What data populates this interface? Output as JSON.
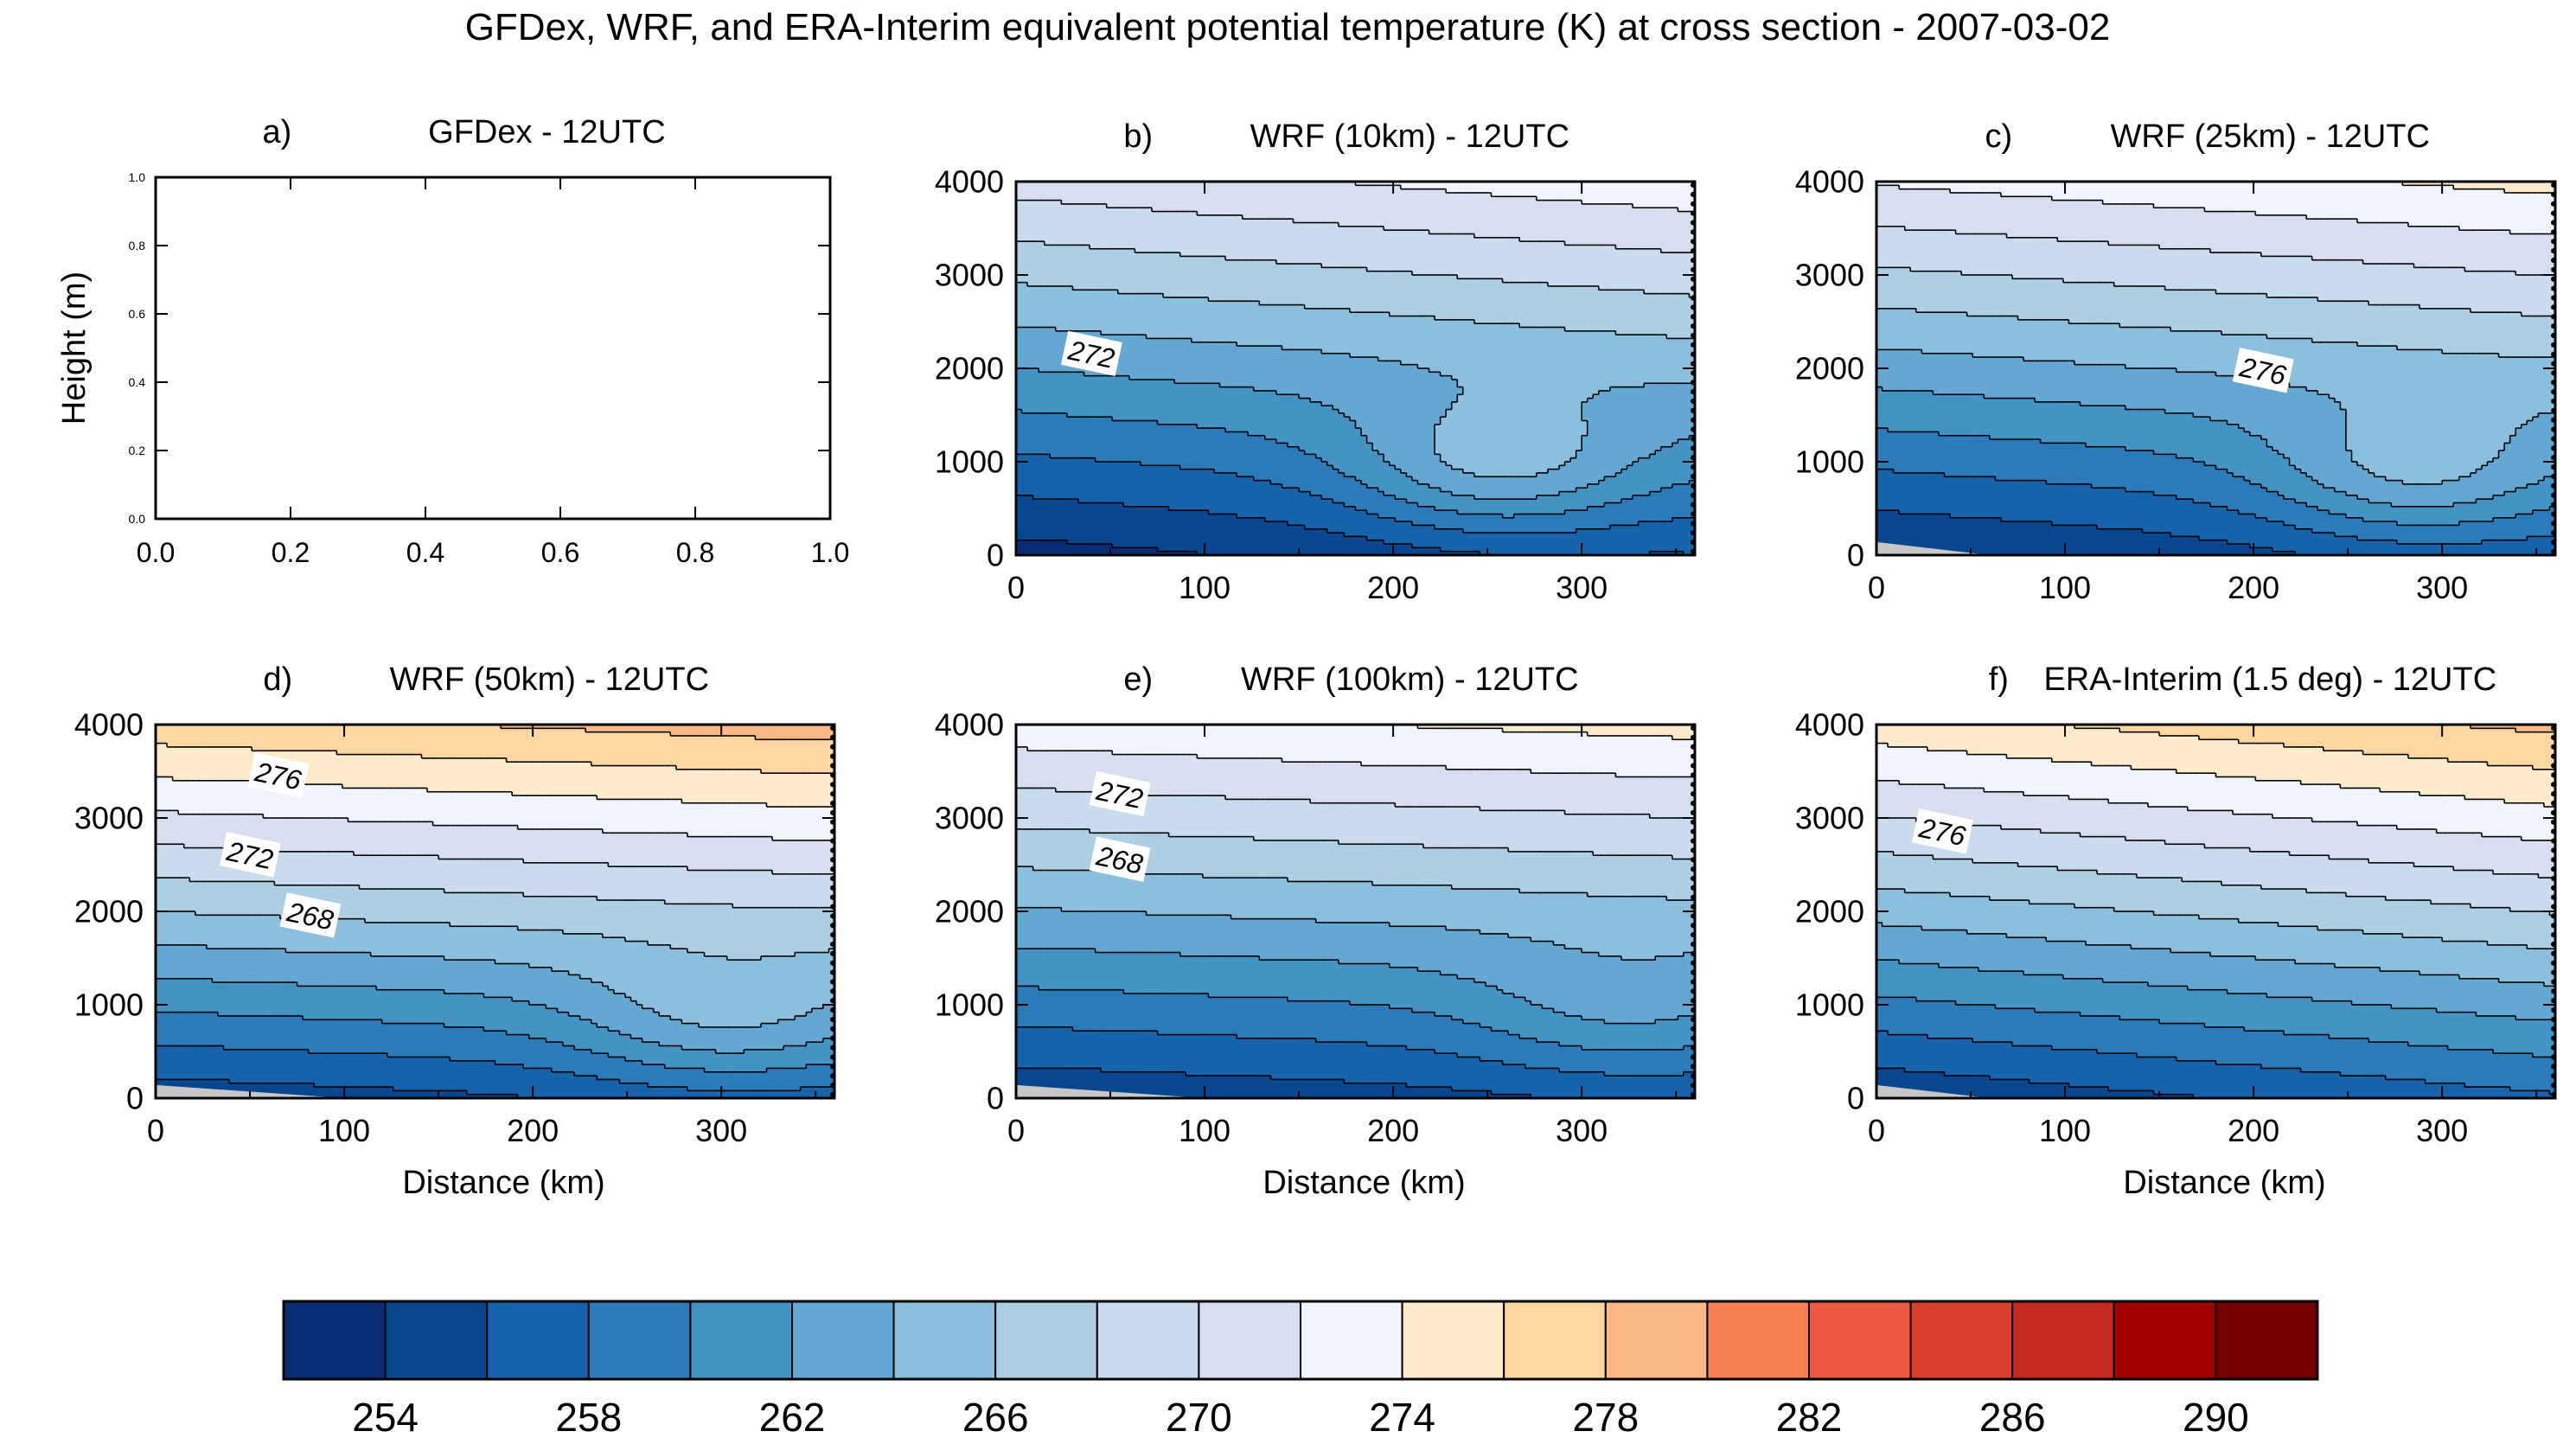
{
  "figure": {
    "title": "GFDex, WRF, and ERA-Interim equivalent potential temperature (K) at cross section - 2007-03-02"
  },
  "colors": {
    "levels": [
      "#0a2c74",
      "#08468f",
      "#1662ab",
      "#2b7bba",
      "#4493c5",
      "#62a8d2",
      "#8cbfdd",
      "#adcfe4",
      "#c8dcee",
      "#d6deef",
      "#f0f4fc",
      "#feebcc",
      "#fdd7a2",
      "#fcb985",
      "#f67e52",
      "#ea5940",
      "#d8402d",
      "#c42a1e",
      "#a40000",
      "#740000"
    ],
    "ground": "#c7c7c7",
    "contour": "#000000"
  },
  "chart_data": [
    {
      "id": "a",
      "type": "empty",
      "panel_label": "a)",
      "title": "GFDex - 12UTC",
      "ylabel": "Height (m)",
      "xlabel": "",
      "xlim": [
        0,
        1
      ],
      "ylim": [
        0,
        1
      ],
      "xticks": [
        "0.0",
        "0.2",
        "0.4",
        "0.6",
        "0.8",
        "1.0"
      ],
      "yticks": [
        "0.0",
        "0.2",
        "0.4",
        "0.6",
        "0.8",
        "1.0"
      ]
    },
    {
      "id": "b",
      "type": "contour",
      "panel_label": "b)",
      "title": "WRF (10km) - 12UTC",
      "xlabel": "",
      "xlim": [
        0,
        360
      ],
      "ylim": [
        0,
        4000
      ],
      "xticks": [
        "0",
        "100",
        "200",
        "300"
      ],
      "yticks": [
        "0",
        "1000",
        "2000",
        "3000",
        "4000"
      ],
      "theta_min": 253.2,
      "slope": 4.4,
      "gradient": 0.72,
      "bulge": 5.5,
      "bulge_x": 255,
      "bulge_z": 950,
      "surface_ground": [
        0,
        0
      ],
      "contour_labels": [
        {
          "text": "272",
          "x": 40,
          "z": 2150
        }
      ]
    },
    {
      "id": "c",
      "type": "contour",
      "panel_label": "c)",
      "title": "WRF (25km) - 12UTC",
      "xlabel": "",
      "xlim": [
        0,
        360
      ],
      "ylim": [
        0,
        4000
      ],
      "xticks": [
        "0",
        "100",
        "200",
        "300"
      ],
      "yticks": [
        "0",
        "1000",
        "2000",
        "3000",
        "4000"
      ],
      "theta_min": 253.8,
      "slope": 4.6,
      "gradient": 0.68,
      "bulge": 4.8,
      "bulge_x": 285,
      "bulge_z": 850,
      "surface_ground": [
        0,
        60
      ],
      "contour_labels": [
        {
          "text": "276",
          "x": 205,
          "z": 1970
        }
      ]
    },
    {
      "id": "d",
      "type": "contour",
      "panel_label": "d)",
      "title": "WRF (50km) - 12UTC",
      "xlabel": "Distance (km)",
      "xlim": [
        0,
        360
      ],
      "ylim": [
        0,
        4000
      ],
      "xticks": [
        "0",
        "100",
        "200",
        "300"
      ],
      "yticks": [
        "0",
        "1000",
        "2000",
        "3000",
        "4000"
      ],
      "theta_min": 254.8,
      "slope": 5.6,
      "gradient": 0.5,
      "bulge": 3.5,
      "bulge_x": 300,
      "bulge_z": 800,
      "surface_ground": [
        0,
        100
      ],
      "contour_labels": [
        {
          "text": "276",
          "x": 65,
          "z": 3450
        },
        {
          "text": "272",
          "x": 50,
          "z": 2600
        },
        {
          "text": "268",
          "x": 82,
          "z": 1950
        }
      ]
    },
    {
      "id": "e",
      "type": "contour",
      "panel_label": "e)",
      "title": "WRF (100km) - 12UTC",
      "xlabel": "Distance (km)",
      "xlim": [
        0,
        360
      ],
      "ylim": [
        0,
        4000
      ],
      "xticks": [
        "0",
        "100",
        "200",
        "300"
      ],
      "yticks": [
        "0",
        "1000",
        "2000",
        "3000",
        "4000"
      ],
      "theta_min": 254.4,
      "slope": 4.7,
      "gradient": 0.42,
      "bulge": 2.5,
      "bulge_x": 320,
      "bulge_z": 900,
      "surface_ground": [
        0,
        100
      ],
      "contour_labels": [
        {
          "text": "272",
          "x": 55,
          "z": 3250
        },
        {
          "text": "268",
          "x": 55,
          "z": 2550
        }
      ]
    },
    {
      "id": "f",
      "type": "contour",
      "panel_label": "f)",
      "title": "ERA-Interim (1.5 deg) - 12UTC",
      "xlabel": "Distance (km)",
      "xlim": [
        0,
        360
      ],
      "ylim": [
        0,
        4000
      ],
      "xticks": [
        "0",
        "100",
        "200",
        "300"
      ],
      "yticks": [
        "0",
        "1000",
        "2000",
        "3000",
        "4000"
      ],
      "theta_min": 254.3,
      "slope": 5.2,
      "gradient": 0.95,
      "bulge": 0,
      "bulge_x": 300,
      "bulge_z": 800,
      "surface_ground": [
        0,
        60
      ],
      "contour_labels": [
        {
          "text": "276",
          "x": 35,
          "z": 2850
        }
      ]
    }
  ],
  "colorbar": {
    "start": 252,
    "step": 2,
    "count": 20,
    "labels": [
      "254",
      "258",
      "262",
      "266",
      "270",
      "274",
      "278",
      "282",
      "286",
      "290"
    ]
  }
}
